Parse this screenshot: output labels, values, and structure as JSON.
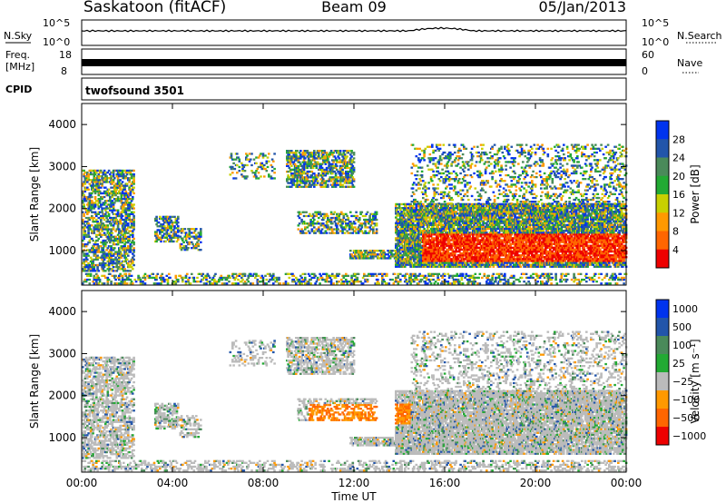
{
  "header": {
    "station": "Saskatoon (fitACF)",
    "beam": "Beam 09",
    "date": "05/Jan/2013"
  },
  "noise_panel": {
    "left_label": "N.Sky",
    "right_label": "N.Search",
    "left_ticks": [
      "10^5",
      "10^0"
    ],
    "right_ticks": [
      "10^5",
      "10^0"
    ]
  },
  "freq_panel": {
    "left_label_1": "Freq.",
    "left_label_2": "[MHz]",
    "right_label": "Nave",
    "left_ticks": [
      "18",
      "8"
    ],
    "right_ticks": [
      "60",
      "0"
    ]
  },
  "cpid_panel": {
    "label": "CPID",
    "program": "twofsound 3501"
  },
  "colors": {
    "power_scale": [
      "#0033ee",
      "#2255aa",
      "#4a8a5a",
      "#22aa33",
      "#c8d000",
      "#ff9900",
      "#ff6600",
      "#ee0000"
    ],
    "velocity_scale": [
      "#0033ee",
      "#2255aa",
      "#4a8a5a",
      "#22aa33",
      "#bbbbbb",
      "#ff9900",
      "#ff6600",
      "#ee0000"
    ]
  },
  "chart_data": [
    {
      "type": "heatmap",
      "name": "power",
      "ylabel": "Slant Range [km]",
      "ylim": [
        180,
        4500
      ],
      "yticks": [
        "1000",
        "2000",
        "3000",
        "4000"
      ],
      "xlim_hours": [
        0,
        24
      ],
      "colorbar_label": "Power [dB]",
      "colorbar_ticks": [
        "4",
        "8",
        "12",
        "16",
        "20",
        "24",
        "28"
      ],
      "colorbar_range": [
        0,
        32
      ]
    },
    {
      "type": "heatmap",
      "name": "velocity",
      "ylabel": "Slant Range [km]",
      "ylim": [
        180,
        4500
      ],
      "yticks": [
        "1000",
        "2000",
        "3000",
        "4000"
      ],
      "xlim_hours": [
        0,
        24
      ],
      "colorbar_label": "Velocity [m s⁻¹]",
      "colorbar_ticks": [
        "1000",
        "500",
        "100",
        "25",
        "−25",
        "−100",
        "−500",
        "−1000"
      ]
    }
  ],
  "xaxis": {
    "ticks": [
      "00:00",
      "04:00",
      "08:00",
      "12:00",
      "16:00",
      "20:00",
      "00:00"
    ],
    "label": "Time UT"
  }
}
